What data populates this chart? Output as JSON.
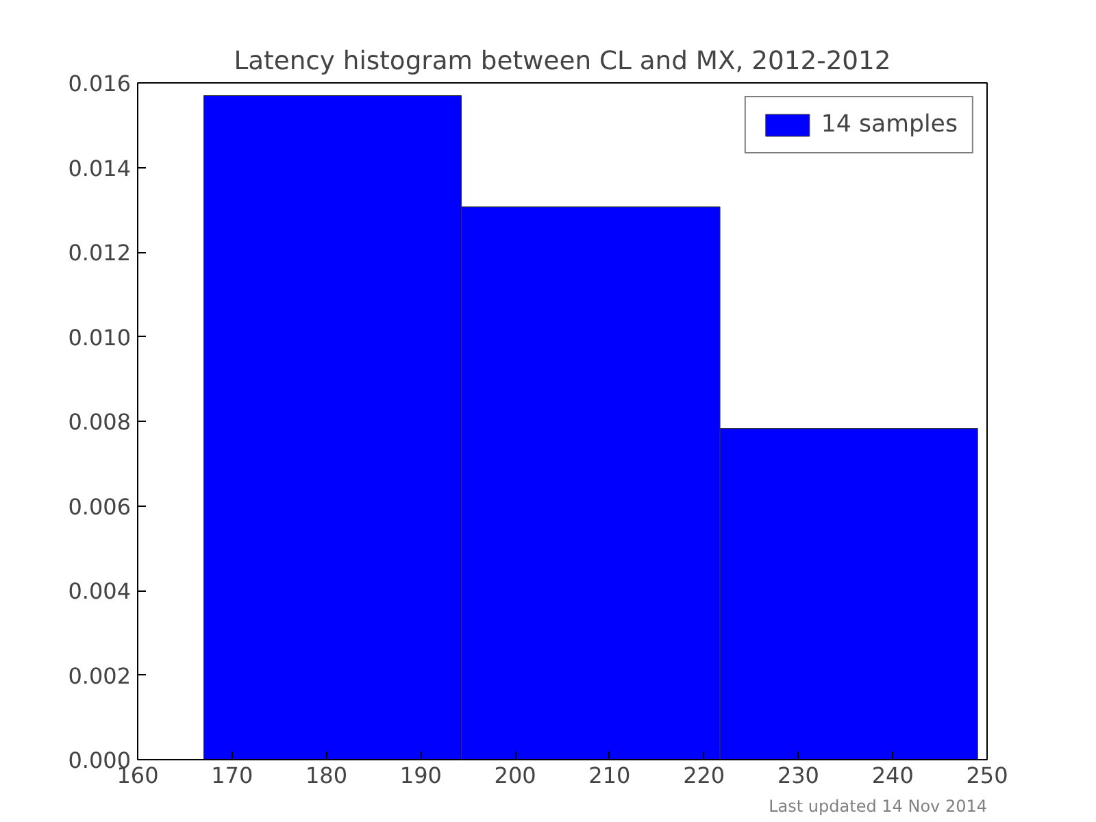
{
  "chart_data": {
    "type": "histogram",
    "title": "Latency histogram between CL and MX, 2012-2012",
    "bins": [
      167,
      194.3,
      221.7,
      249
    ],
    "series": [
      {
        "name": "14 samples",
        "color": "#0000ff",
        "values": [
          0.0157,
          0.01307,
          0.00783
        ]
      }
    ],
    "xlim": [
      160,
      250
    ],
    "xticks": [
      160,
      170,
      180,
      190,
      200,
      210,
      220,
      230,
      240,
      250
    ],
    "ylim": [
      0,
      0.016
    ],
    "yticks": [
      {
        "value": 0,
        "label": "0.000"
      },
      {
        "value": 0.002,
        "label": "0.002"
      },
      {
        "value": 0.004,
        "label": "0.004"
      },
      {
        "value": 0.006,
        "label": "0.006"
      },
      {
        "value": 0.008,
        "label": "0.008"
      },
      {
        "value": 0.01,
        "label": "0.010"
      },
      {
        "value": 0.012,
        "label": "0.012"
      },
      {
        "value": 0.014,
        "label": "0.014"
      },
      {
        "value": 0.016,
        "label": "0.016"
      }
    ],
    "grid": false,
    "legend": "top right",
    "annotations": [
      "Last updated 14 Nov 2014"
    ]
  }
}
